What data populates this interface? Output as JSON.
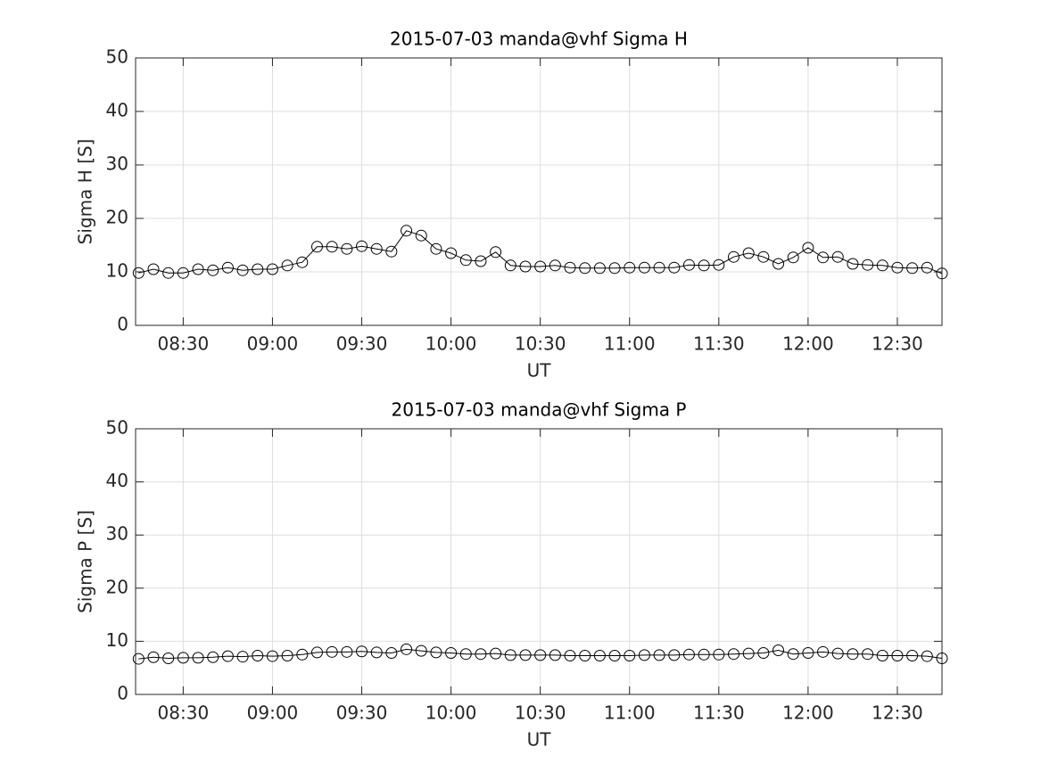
{
  "chart_data": [
    {
      "type": "line",
      "title": "2015-07-03  manda@vhf Sigma H",
      "xlabel": "UT",
      "ylabel": "Sigma H [S]",
      "color": "#000000",
      "marker": "circle",
      "grid": true,
      "x": [
        "08:15",
        "08:20",
        "08:25",
        "08:30",
        "08:35",
        "08:40",
        "08:45",
        "08:50",
        "08:55",
        "09:00",
        "09:05",
        "09:10",
        "09:15",
        "09:20",
        "09:25",
        "09:30",
        "09:35",
        "09:40",
        "09:45",
        "09:50",
        "09:55",
        "10:00",
        "10:05",
        "10:10",
        "10:15",
        "10:20",
        "10:25",
        "10:30",
        "10:35",
        "10:40",
        "10:45",
        "10:50",
        "10:55",
        "11:00",
        "11:05",
        "11:10",
        "11:15",
        "11:20",
        "11:25",
        "11:30",
        "11:35",
        "11:40",
        "11:45",
        "11:50",
        "11:55",
        "12:00",
        "12:05",
        "12:10",
        "12:15",
        "12:20",
        "12:25",
        "12:30",
        "12:35",
        "12:40",
        "12:45"
      ],
      "values": [
        9.8,
        10.5,
        9.8,
        9.8,
        10.5,
        10.3,
        10.8,
        10.3,
        10.5,
        10.5,
        11.2,
        11.8,
        14.7,
        14.7,
        14.3,
        14.8,
        14.3,
        13.8,
        17.7,
        16.8,
        14.3,
        13.5,
        12.2,
        12.0,
        13.7,
        11.2,
        11.0,
        11.0,
        11.2,
        10.8,
        10.7,
        10.7,
        10.7,
        10.8,
        10.8,
        10.8,
        10.8,
        11.3,
        11.2,
        11.3,
        12.8,
        13.5,
        12.8,
        11.5,
        12.7,
        14.5,
        12.7,
        12.8,
        11.5,
        11.3,
        11.2,
        10.8,
        10.7,
        10.8,
        9.7
      ],
      "xlim": [
        "08:14",
        "12:45"
      ],
      "xticks": [
        "08:30",
        "09:00",
        "09:30",
        "10:00",
        "10:30",
        "11:00",
        "11:30",
        "12:00",
        "12:30"
      ],
      "ylim": [
        0,
        50
      ],
      "yticks": [
        0,
        10,
        20,
        30,
        40,
        50
      ]
    },
    {
      "type": "line",
      "title": "2015-07-03  manda@vhf Sigma P",
      "xlabel": "UT",
      "ylabel": "Sigma P [S]",
      "color": "#000000",
      "marker": "circle",
      "grid": true,
      "x": [
        "08:15",
        "08:20",
        "08:25",
        "08:30",
        "08:35",
        "08:40",
        "08:45",
        "08:50",
        "08:55",
        "09:00",
        "09:05",
        "09:10",
        "09:15",
        "09:20",
        "09:25",
        "09:30",
        "09:35",
        "09:40",
        "09:45",
        "09:50",
        "09:55",
        "10:00",
        "10:05",
        "10:10",
        "10:15",
        "10:20",
        "10:25",
        "10:30",
        "10:35",
        "10:40",
        "10:45",
        "10:50",
        "10:55",
        "11:00",
        "11:05",
        "11:10",
        "11:15",
        "11:20",
        "11:25",
        "11:30",
        "11:35",
        "11:40",
        "11:45",
        "11:50",
        "11:55",
        "12:00",
        "12:05",
        "12:10",
        "12:15",
        "12:20",
        "12:25",
        "12:30",
        "12:35",
        "12:40",
        "12:45"
      ],
      "values": [
        6.7,
        7.0,
        6.8,
        6.9,
        6.9,
        7.0,
        7.2,
        7.1,
        7.3,
        7.2,
        7.3,
        7.5,
        7.9,
        8.0,
        8.0,
        8.1,
        7.9,
        7.8,
        8.5,
        8.2,
        7.9,
        7.8,
        7.6,
        7.6,
        7.7,
        7.4,
        7.4,
        7.4,
        7.4,
        7.3,
        7.3,
        7.3,
        7.3,
        7.3,
        7.4,
        7.4,
        7.4,
        7.5,
        7.5,
        7.5,
        7.6,
        7.7,
        7.8,
        8.3,
        7.6,
        7.8,
        8.0,
        7.7,
        7.6,
        7.6,
        7.3,
        7.3,
        7.3,
        7.2,
        6.8
      ],
      "xlim": [
        "08:14",
        "12:45"
      ],
      "xticks": [
        "08:30",
        "09:00",
        "09:30",
        "10:00",
        "10:30",
        "11:00",
        "11:30",
        "12:00",
        "12:30"
      ],
      "ylim": [
        0,
        50
      ],
      "yticks": [
        0,
        10,
        20,
        30,
        40,
        50
      ]
    }
  ]
}
